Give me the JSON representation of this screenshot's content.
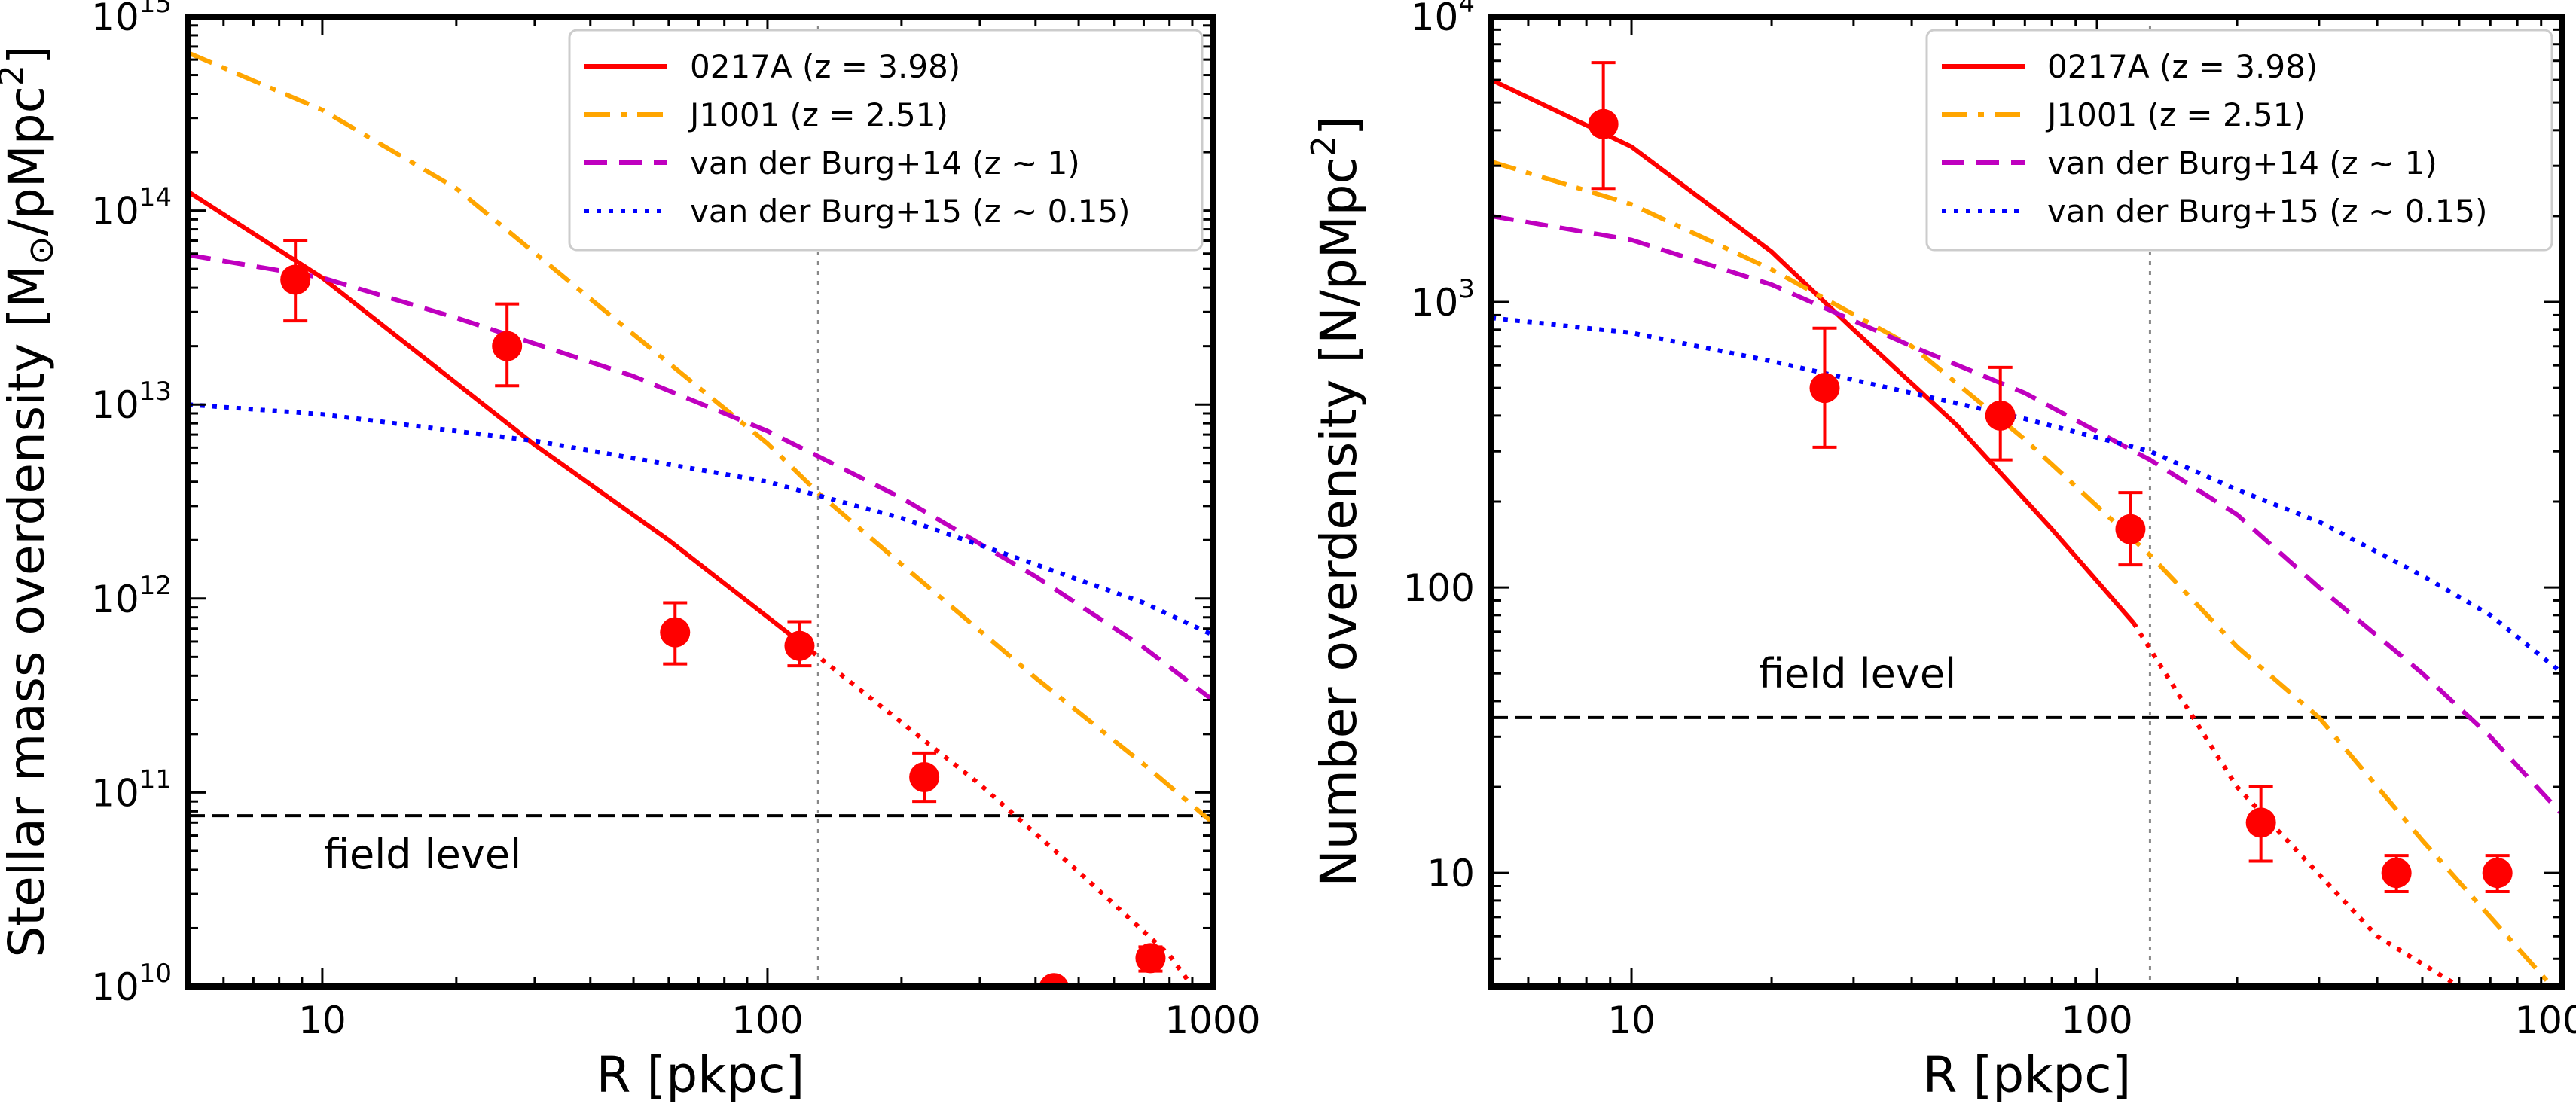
{
  "chart_data": [
    {
      "type": "line",
      "panel": "left",
      "xlabel": "R [pkpc]",
      "ylabel_main": "Stellar mass overdensity [M",
      "ylabel_sun": "⊙",
      "ylabel_unit": "/pMpc",
      "ylabel_exp": "2",
      "ylabel_close": "]",
      "xscale": "log",
      "yscale": "log",
      "xlim": [
        5,
        1000
      ],
      "ylim": [
        10000000000.0,
        1000000000000000.0
      ],
      "xticks": [
        {
          "value": 10,
          "label": "10"
        },
        {
          "value": 100,
          "label": "100"
        },
        {
          "value": 1000,
          "label": "1000"
        }
      ],
      "yticks": [
        {
          "value": 10000000000.0,
          "base": "10",
          "exp": "10"
        },
        {
          "value": 100000000000.0,
          "base": "10",
          "exp": "11"
        },
        {
          "value": 1000000000000.0,
          "base": "10",
          "exp": "12"
        },
        {
          "value": 10000000000000.0,
          "base": "10",
          "exp": "13"
        },
        {
          "value": 100000000000000.0,
          "base": "10",
          "exp": "14"
        },
        {
          "value": 1000000000000000.0,
          "base": "10",
          "exp": "15"
        }
      ],
      "vline_x": 130,
      "field_level": 76000000000.0,
      "field_label": "field level",
      "legend_position": "top-right",
      "series": [
        {
          "name": "0217A (z = 3.98)",
          "color": "#ff0000",
          "dash": "solid",
          "dashed_beyond_x": 120,
          "points": [
            [
              5,
              125000000000000.0
            ],
            [
              10,
              45000000000000.0
            ],
            [
              30,
              6200000000000.0
            ],
            [
              60,
              2000000000000.0
            ],
            [
              120,
              580000000000.0
            ],
            [
              300,
              110000000000.0
            ],
            [
              500,
              39000000000.0
            ],
            [
              800,
              14500000000.0
            ],
            [
              900,
              10000000000.0
            ]
          ]
        },
        {
          "name": "J1001 (z = 2.51)",
          "color": "#ffa500",
          "dash": "dashdot",
          "points": [
            [
              5,
              650000000000000.0
            ],
            [
              10,
              330000000000000.0
            ],
            [
              20,
              130000000000000.0
            ],
            [
              50,
              23000000000000.0
            ],
            [
              100,
              6300000000000.0
            ],
            [
              130,
              3500000000000.0
            ],
            [
              200,
              1500000000000.0
            ],
            [
              400,
              390000000000.0
            ],
            [
              700,
              140000000000.0
            ],
            [
              1000,
              70000000000.0
            ]
          ]
        },
        {
          "name": "van der Burg+14 (z ~ 1)",
          "color": "#bf00bf",
          "dash": "dashed",
          "points": [
            [
              5,
              59000000000000.0
            ],
            [
              10,
              45000000000000.0
            ],
            [
              20,
              28000000000000.0
            ],
            [
              50,
              14000000000000.0
            ],
            [
              100,
              7300000000000.0
            ],
            [
              200,
              3300000000000.0
            ],
            [
              400,
              1300000000000.0
            ],
            [
              700,
              560000000000.0
            ],
            [
              1000,
              300000000000.0
            ]
          ]
        },
        {
          "name": "van der Burg+15 (z ~ 0.15)",
          "color": "#0000ff",
          "dash": "dotted",
          "points": [
            [
              5,
              10000000000000.0
            ],
            [
              10,
              8900000000000.0
            ],
            [
              30,
              6500000000000.0
            ],
            [
              100,
              4000000000000.0
            ],
            [
              200,
              2600000000000.0
            ],
            [
              400,
              1500000000000.0
            ],
            [
              700,
              950000000000.0
            ],
            [
              1000,
              650000000000.0
            ]
          ]
        }
      ],
      "data_points": [
        {
          "x": 8.7,
          "y": 44000000000000.0,
          "ylo": 27000000000000.0,
          "yhi": 70000000000000.0
        },
        {
          "x": 26,
          "y": 20000000000000.0,
          "ylo": 12500000000000.0,
          "yhi": 33000000000000.0
        },
        {
          "x": 62,
          "y": 670000000000.0,
          "ylo": 460000000000.0,
          "yhi": 950000000000.0
        },
        {
          "x": 118,
          "y": 570000000000.0,
          "ylo": 450000000000.0,
          "yhi": 760000000000.0
        },
        {
          "x": 225,
          "y": 120000000000.0,
          "ylo": 90000000000.0,
          "yhi": 160000000000.0
        },
        {
          "x": 440,
          "y": 9800000000.0,
          "ylo": 9200000000.0,
          "yhi": 10300000000.0
        },
        {
          "x": 725,
          "y": 14000000000.0,
          "ylo": 12000000000.0,
          "yhi": 16000000000.0
        }
      ]
    },
    {
      "type": "line",
      "panel": "right",
      "xlabel": "R [pkpc]",
      "ylabel_main": "Number overdensity [N/pMpc",
      "ylabel_exp": "2",
      "ylabel_close": "]",
      "xscale": "log",
      "yscale": "log",
      "xlim": [
        5,
        1000
      ],
      "ylim": [
        4,
        10000
      ],
      "xticks": [
        {
          "value": 10,
          "label": "10"
        },
        {
          "value": 100,
          "label": "100"
        },
        {
          "value": 1000,
          "label": "1000"
        }
      ],
      "yticks": [
        {
          "value": 10,
          "label": "10"
        },
        {
          "value": 100,
          "label": "100"
        },
        {
          "value": 1000,
          "base": "10",
          "exp": "3"
        },
        {
          "value": 10000,
          "base": "10",
          "exp": "4"
        }
      ],
      "vline_x": 130,
      "field_level": 35,
      "field_label": "field level",
      "legend_position": "top-right",
      "series": [
        {
          "name": "0217A (z = 3.98)",
          "color": "#ff0000",
          "dash": "solid",
          "dashed_beyond_x": 120,
          "points": [
            [
              5,
              6000
            ],
            [
              10,
              3500
            ],
            [
              20,
              1500
            ],
            [
              30,
              800
            ],
            [
              50,
              370
            ],
            [
              80,
              160
            ],
            [
              120,
              75
            ],
            [
              200,
              20
            ],
            [
              400,
              6
            ],
            [
              600,
              4
            ]
          ]
        },
        {
          "name": "J1001 (z = 2.51)",
          "color": "#ffa500",
          "dash": "dashdot",
          "points": [
            [
              5,
              3100
            ],
            [
              10,
              2200
            ],
            [
              20,
              1300
            ],
            [
              40,
              700
            ],
            [
              70,
              330
            ],
            [
              130,
              130
            ],
            [
              200,
              62
            ],
            [
              300,
              35
            ],
            [
              500,
              13
            ],
            [
              700,
              7
            ],
            [
              950,
              4
            ]
          ]
        },
        {
          "name": "van der Burg+14 (z ~ 1)",
          "color": "#bf00bf",
          "dash": "dashed",
          "points": [
            [
              5,
              2000
            ],
            [
              10,
              1650
            ],
            [
              20,
              1150
            ],
            [
              40,
              700
            ],
            [
              70,
              480
            ],
            [
              130,
              280
            ],
            [
              200,
              180
            ],
            [
              300,
              100
            ],
            [
              500,
              50
            ],
            [
              700,
              30
            ],
            [
              1000,
              16
            ]
          ]
        },
        {
          "name": "van der Burg+15 (z ~ 0.15)",
          "color": "#0000ff",
          "dash": "dotted",
          "points": [
            [
              5,
              880
            ],
            [
              10,
              780
            ],
            [
              20,
              620
            ],
            [
              40,
              480
            ],
            [
              70,
              390
            ],
            [
              130,
              300
            ],
            [
              200,
              220
            ],
            [
              300,
              170
            ],
            [
              500,
              110
            ],
            [
              700,
              80
            ],
            [
              1000,
              50
            ]
          ]
        }
      ],
      "data_points": [
        {
          "x": 8.7,
          "y": 4200,
          "ylo": 2500,
          "yhi": 6900
        },
        {
          "x": 26,
          "y": 500,
          "ylo": 310,
          "yhi": 810
        },
        {
          "x": 62,
          "y": 400,
          "ylo": 280,
          "yhi": 590
        },
        {
          "x": 118,
          "y": 160,
          "ylo": 120,
          "yhi": 215
        },
        {
          "x": 225,
          "y": 15,
          "ylo": 11,
          "yhi": 20
        },
        {
          "x": 440,
          "y": 10,
          "ylo": 8.6,
          "yhi": 11.5
        },
        {
          "x": 725,
          "y": 10,
          "ylo": 8.6,
          "yhi": 11.5
        }
      ]
    }
  ]
}
